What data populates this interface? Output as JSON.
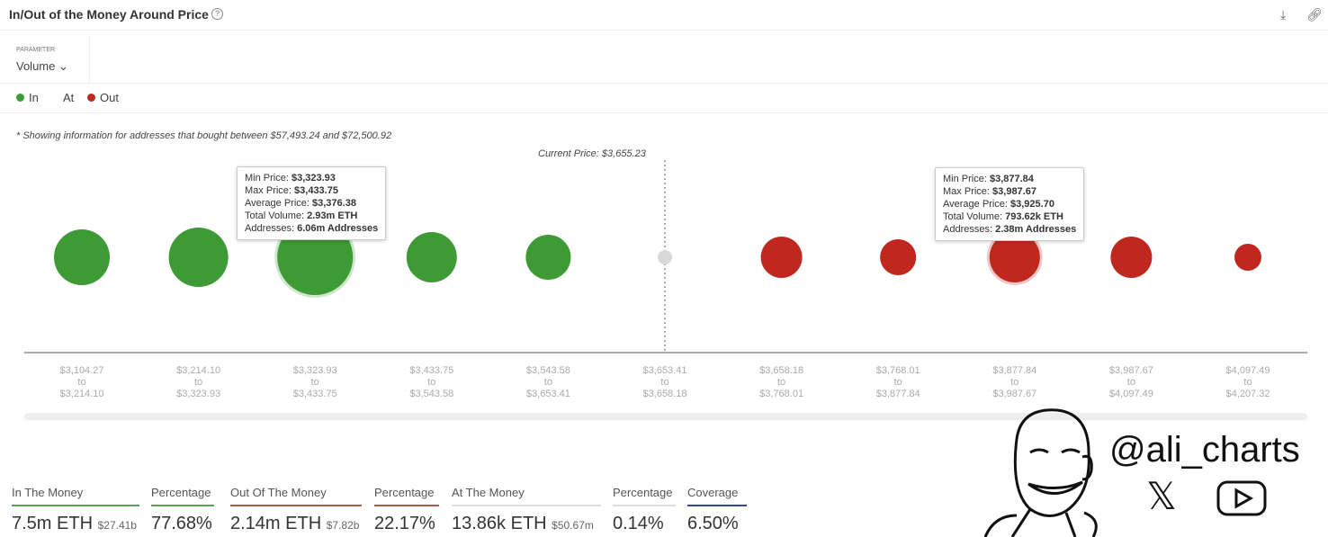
{
  "header": {
    "title": "In/Out of the Money Around Price",
    "help_icon": "?",
    "download_icon": "download-icon",
    "link_icon": "link-icon"
  },
  "parameter": {
    "label": "PARAMETER",
    "value": "Volume"
  },
  "legend": [
    {
      "label": "In",
      "color": "#3e9a35"
    },
    {
      "label": "At",
      "color": ""
    },
    {
      "label": "Out",
      "color": "#c0281f"
    }
  ],
  "note": "* Showing information for addresses that bought between $57,493.24 and $72,500.92",
  "current_price_label": "Current Price: $3,655.23",
  "chart_data": {
    "type": "scatter",
    "title": "In/Out of the Money Around Price",
    "parameter": "Volume",
    "categories": [
      {
        "from": "$3,104.27",
        "to": "$3,214.10",
        "status": "in",
        "volume_m_eth": 1.1
      },
      {
        "from": "$3,214.10",
        "to": "$3,323.93",
        "status": "in",
        "volume_m_eth": 1.35
      },
      {
        "from": "$3,323.93",
        "to": "$3,433.75",
        "status": "in",
        "volume_m_eth": 2.93,
        "highlight": true
      },
      {
        "from": "$3,433.75",
        "to": "$3,543.58",
        "status": "in",
        "volume_m_eth": 0.79
      },
      {
        "from": "$3,543.58",
        "to": "$3,653.41",
        "status": "in",
        "volume_m_eth": 0.55
      },
      {
        "from": "$3,653.41",
        "to": "$3,658.18",
        "status": "at",
        "volume_m_eth": 0.01386
      },
      {
        "from": "$3,658.18",
        "to": "$3,768.01",
        "status": "out",
        "volume_m_eth": 0.42
      },
      {
        "from": "$3,768.01",
        "to": "$3,877.84",
        "status": "out",
        "volume_m_eth": 0.27
      },
      {
        "from": "$3,877.84",
        "to": "$3,987.67",
        "status": "out",
        "volume_m_eth": 0.79362,
        "highlight": true
      },
      {
        "from": "$3,987.67",
        "to": "$4,097.49",
        "status": "out",
        "volume_m_eth": 0.42
      },
      {
        "from": "$4,097.49",
        "to": "$4,207.32",
        "status": "out",
        "volume_m_eth": 0.105
      }
    ],
    "to_word": "to",
    "current_price_index": 5,
    "colors": {
      "in": "#3e9a35",
      "at": "#d9d9d9",
      "out": "#c0281f"
    }
  },
  "tooltips": [
    {
      "rows": [
        [
          "Min Price:",
          "$3,323.93"
        ],
        [
          "Max Price:",
          "$3,433.75"
        ],
        [
          "Average Price:",
          "$3,376.38"
        ],
        [
          "Total Volume:",
          "2.93m ETH"
        ],
        [
          "Addresses:",
          "6.06m Addresses"
        ]
      ]
    },
    {
      "rows": [
        [
          "Min Price:",
          "$3,877.84"
        ],
        [
          "Max Price:",
          "$3,987.67"
        ],
        [
          "Average Price:",
          "$3,925.70"
        ],
        [
          "Total Volume:",
          "793.62k ETH"
        ],
        [
          "Addresses:",
          "2.38m Addresses"
        ]
      ]
    }
  ],
  "stats": [
    {
      "label": "In The Money",
      "value": "7.5m ETH",
      "sub": "$27.41b",
      "color": "#5aa356"
    },
    {
      "label": "Percentage",
      "value": "77.68%",
      "sub": "",
      "color": "#5aa356"
    },
    {
      "label": "Out Of The Money",
      "value": "2.14m ETH",
      "sub": "$7.82b",
      "color": "#b7574c"
    },
    {
      "label": "Percentage",
      "value": "22.17%",
      "sub": "",
      "color": "#b7574c"
    },
    {
      "label": "At The Money",
      "value": "13.86k ETH",
      "sub": "$50.67m",
      "color": "#ddd"
    },
    {
      "label": "Percentage",
      "value": "0.14%",
      "sub": "",
      "color": "#ddd"
    },
    {
      "label": "Coverage",
      "value": "6.50%",
      "sub": "",
      "color": "#3347a6"
    }
  ],
  "watermark": {
    "handle": "@ali_charts"
  }
}
